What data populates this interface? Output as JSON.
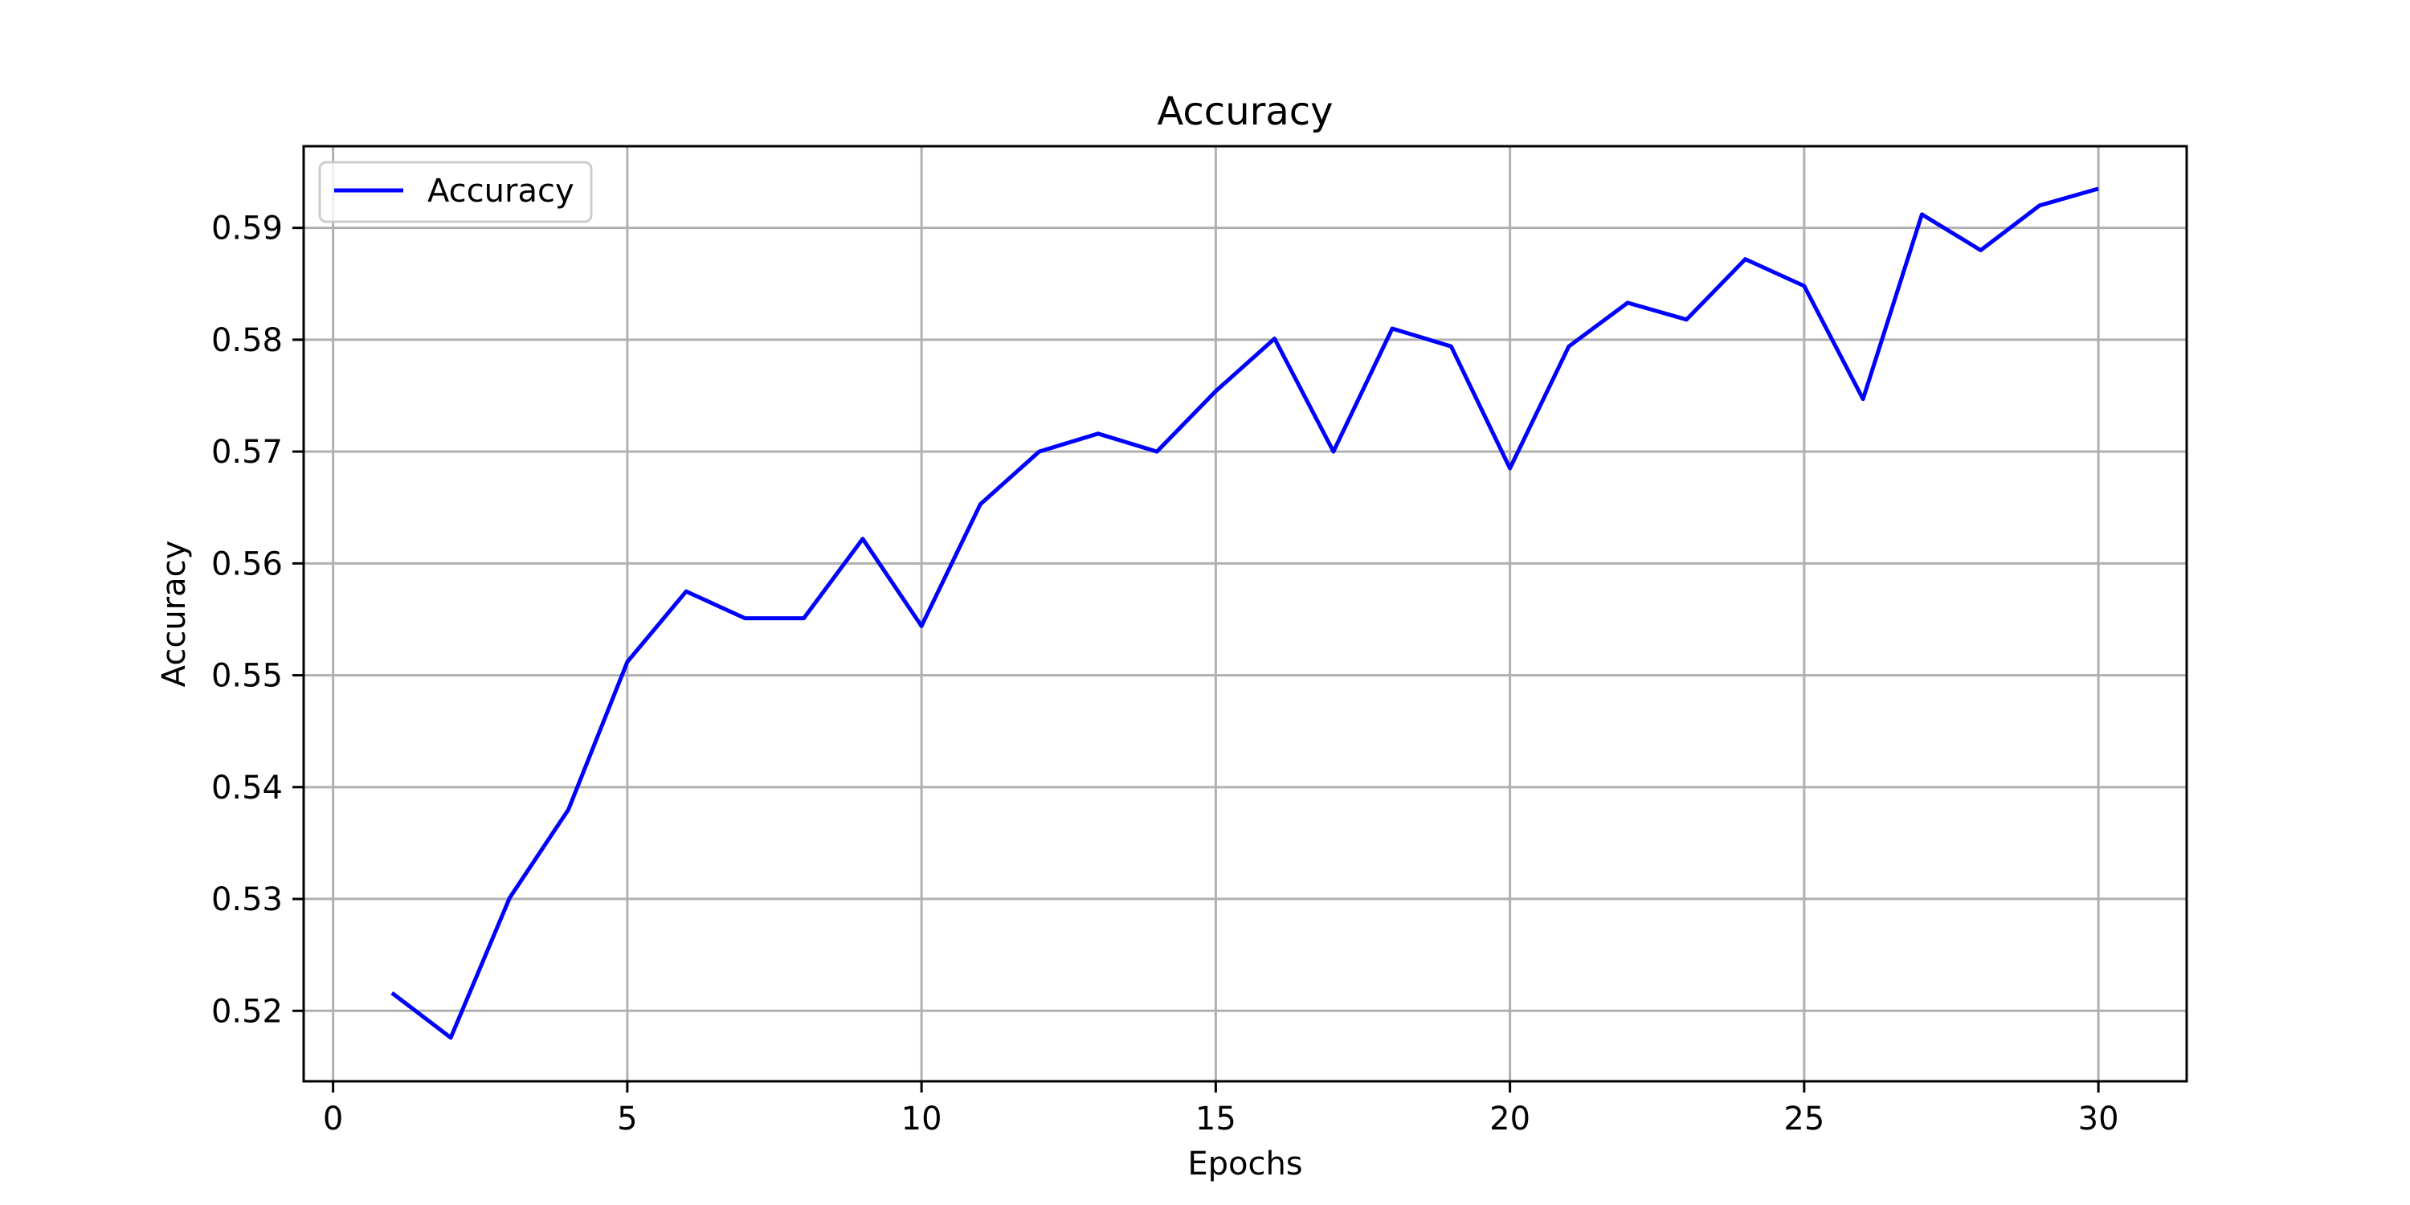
{
  "chart_data": {
    "type": "line",
    "title": "Accuracy",
    "xlabel": "Epochs",
    "ylabel": "Accuracy",
    "xlim": [
      -0.5,
      31.5
    ],
    "ylim": [
      0.5137,
      0.5973
    ],
    "xticks": [
      0,
      5,
      10,
      15,
      20,
      25,
      30
    ],
    "xtick_labels": [
      "0",
      "5",
      "10",
      "15",
      "20",
      "25",
      "30"
    ],
    "yticks": [
      0.52,
      0.53,
      0.54,
      0.55,
      0.56,
      0.57,
      0.58,
      0.59
    ],
    "ytick_labels": [
      "0.52",
      "0.53",
      "0.54",
      "0.55",
      "0.56",
      "0.57",
      "0.58",
      "0.59"
    ],
    "grid": true,
    "legend": {
      "position": "top-left",
      "entries": [
        "Accuracy"
      ]
    },
    "series": [
      {
        "name": "Accuracy",
        "color": "#0000ff",
        "x": [
          1,
          2,
          3,
          4,
          5,
          6,
          7,
          8,
          9,
          10,
          11,
          12,
          13,
          14,
          15,
          16,
          17,
          18,
          19,
          20,
          21,
          22,
          23,
          24,
          25,
          26,
          27,
          28,
          29,
          30
        ],
        "values": [
          0.5216,
          0.5176,
          0.5301,
          0.538,
          0.5512,
          0.5575,
          0.5551,
          0.5551,
          0.5622,
          0.5544,
          0.5653,
          0.57,
          0.5716,
          0.57,
          0.5754,
          0.5801,
          0.57,
          0.581,
          0.5794,
          0.5685,
          0.5794,
          0.5833,
          0.5818,
          0.5872,
          0.5848,
          0.5747,
          0.5912,
          0.588,
          0.592,
          0.5935
        ]
      }
    ]
  }
}
